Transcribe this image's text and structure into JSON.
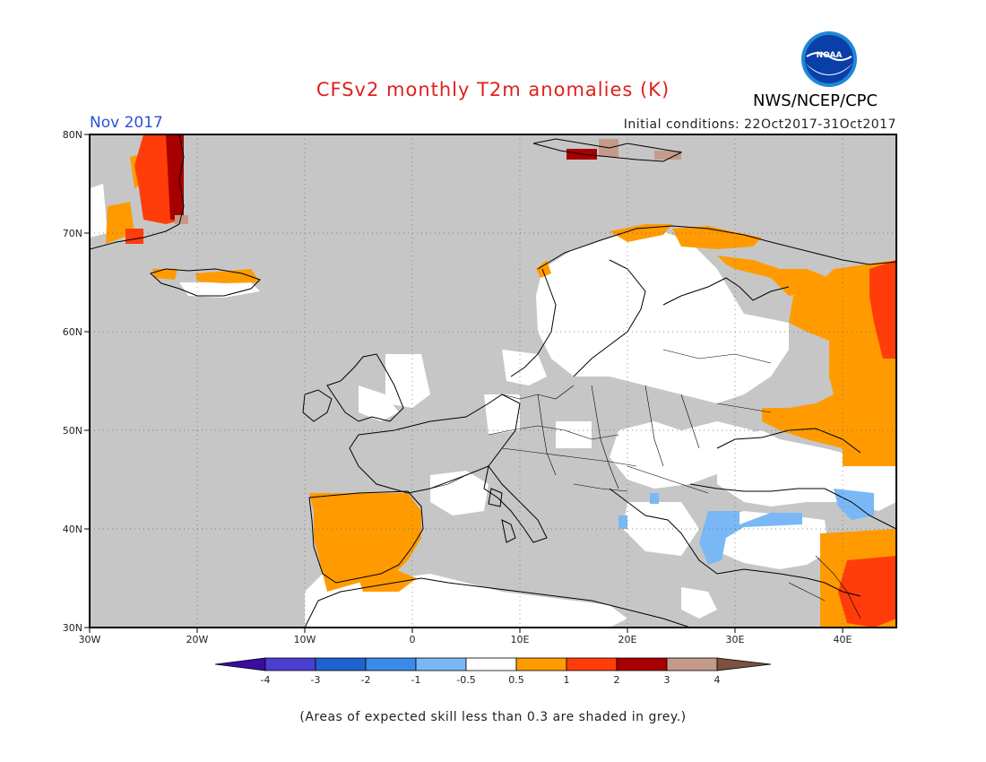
{
  "header": {
    "title": "CFSv2 monthly T2m anomalies (K)",
    "org": "NWS/NCEP/CPC",
    "logo_text": "NOAA",
    "month": "Nov 2017",
    "initial_conditions": "Initial conditions: 22Oct2017-31Oct2017"
  },
  "axes": {
    "lon_ticks": [
      "30W",
      "20W",
      "10W",
      "0",
      "10E",
      "20E",
      "30E",
      "40E"
    ],
    "lat_ticks": [
      "80N",
      "70N",
      "60N",
      "50N",
      "40N",
      "30N"
    ]
  },
  "colorbar": {
    "labels": [
      "-4",
      "-3",
      "-2",
      "-1",
      "-0.5",
      "0.5",
      "1",
      "2",
      "3",
      "4"
    ],
    "colors": [
      "#3a0ca0",
      "#4b3fd0",
      "#1f63d0",
      "#3a8ae8",
      "#7ab8f5",
      "#ffffff",
      "#ff9b00",
      "#ff3c0a",
      "#a80000",
      "#c49a8a",
      "#7d5040"
    ]
  },
  "colors": {
    "grey": "#c6c6c6",
    "white": "#ffffff",
    "orange": "#ff9b00",
    "red": "#ff3c0a",
    "darkred": "#a80000",
    "rose": "#c49a8a",
    "blue": "#7ab8f5",
    "title": "#e0201e",
    "month": "#2f50d8"
  },
  "footnote": "(Areas of expected skill less than 0.3 are shaded in grey.)"
}
